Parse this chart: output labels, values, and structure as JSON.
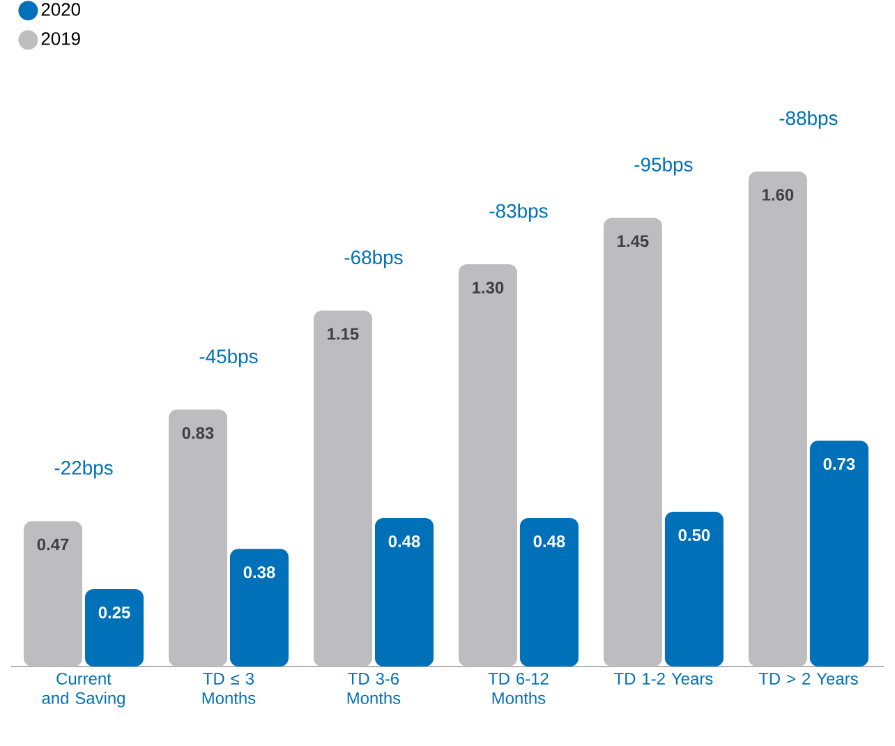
{
  "chart_data": {
    "type": "bar",
    "categories": [
      "Current and Saving",
      "TD ≤ 3 Months",
      "TD 3-6 Months",
      "TD 6-12 Months",
      "TD 1-2 Years",
      "TD > 2 Years"
    ],
    "series": [
      {
        "name": "2019",
        "color": "#bdbdbf",
        "values": [
          0.47,
          0.83,
          1.15,
          1.3,
          1.45,
          1.6
        ],
        "value_labels": [
          "0.47",
          "0.83",
          "1.15",
          "1.30",
          "1.45",
          "1.60"
        ]
      },
      {
        "name": "2020",
        "color": "#0070b8",
        "values": [
          0.25,
          0.38,
          0.48,
          0.48,
          0.5,
          0.73
        ],
        "value_labels": [
          "0.25",
          "0.38",
          "0.48",
          "0.48",
          "0.50",
          "0.73"
        ]
      }
    ],
    "annotations": [
      "-22bps",
      "-45bps",
      "-68bps",
      "-83bps",
      "-95bps",
      "-88bps"
    ],
    "tick_labels": "x",
    "legend": "top left",
    "marker": "circle"
  }
}
